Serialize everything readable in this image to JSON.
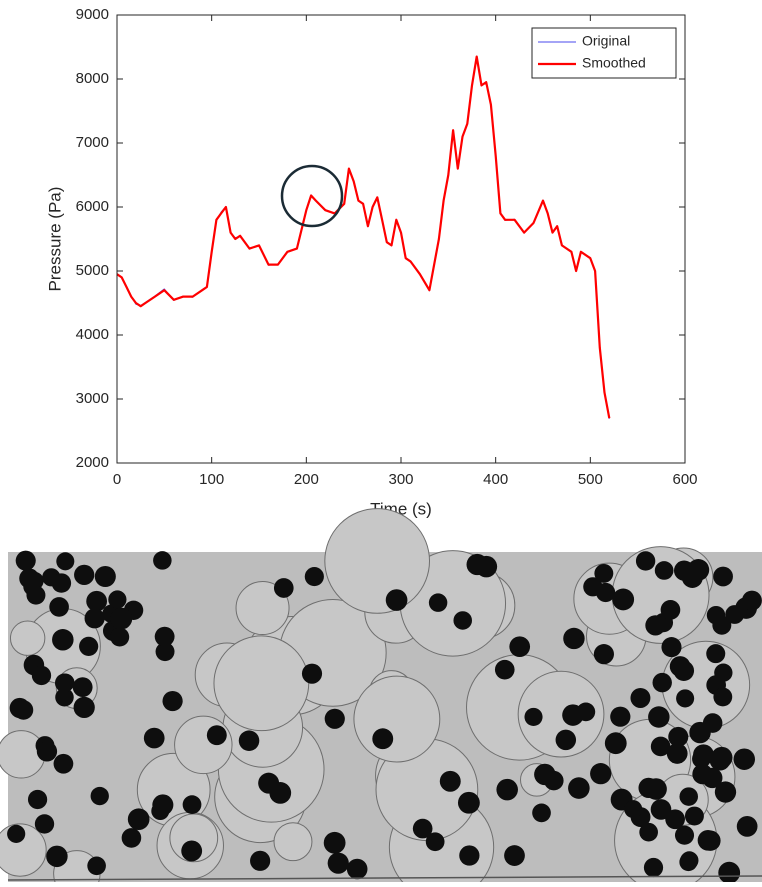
{
  "chart_data": {
    "type": "line",
    "xlabel": "Time (s)",
    "ylabel": "Pressure (Pa)",
    "x": [
      0,
      5,
      10,
      15,
      20,
      25,
      30,
      40,
      50,
      60,
      70,
      80,
      90,
      95,
      100,
      105,
      110,
      115,
      120,
      125,
      130,
      140,
      150,
      160,
      170,
      180,
      190,
      200,
      205,
      210,
      220,
      230,
      240,
      245,
      250,
      255,
      260,
      265,
      270,
      275,
      280,
      285,
      290,
      295,
      300,
      305,
      310,
      320,
      330,
      340,
      345,
      350,
      355,
      360,
      365,
      370,
      375,
      380,
      385,
      390,
      395,
      400,
      405,
      410,
      420,
      430,
      440,
      450,
      455,
      460,
      465,
      470,
      480,
      485,
      490,
      500,
      505,
      510,
      515,
      520
    ],
    "series": [
      {
        "name": "Original",
        "color": "#4a4aee",
        "width": 1,
        "values": [
          4960,
          4890,
          4760,
          4610,
          4480,
          4460,
          4510,
          4610,
          4720,
          4540,
          4610,
          4590,
          4710,
          4760,
          5310,
          5790,
          5920,
          6010,
          5590,
          5520,
          5540,
          5360,
          5390,
          5090,
          5110,
          5290,
          5360,
          5940,
          6190,
          6090,
          5960,
          5890,
          6060,
          6590,
          6410,
          6090,
          6060,
          5690,
          6010,
          6140,
          5790,
          5460,
          5390,
          5810,
          5590,
          5210,
          5140,
          4960,
          4690,
          5510,
          6090,
          6510,
          7190,
          6610,
          7110,
          7290,
          7910,
          8360,
          7890,
          7960,
          7590,
          6810,
          5910,
          5790,
          5810,
          5590,
          5760,
          6110,
          5890,
          5610,
          5690,
          5410,
          5290,
          5010,
          5290,
          5210,
          5010,
          3790,
          3110,
          2690
        ]
      },
      {
        "name": "Smoothed",
        "color": "#ff0000",
        "width": 2.2,
        "values": [
          4950,
          4900,
          4750,
          4600,
          4500,
          4450,
          4500,
          4600,
          4700,
          4550,
          4600,
          4600,
          4700,
          4750,
          5300,
          5800,
          5900,
          6000,
          5600,
          5500,
          5550,
          5350,
          5400,
          5100,
          5100,
          5300,
          5350,
          5950,
          6180,
          6100,
          5950,
          5900,
          6050,
          6600,
          6400,
          6100,
          6050,
          5700,
          6000,
          6150,
          5800,
          5450,
          5400,
          5800,
          5600,
          5200,
          5150,
          4950,
          4700,
          5500,
          6100,
          6500,
          7200,
          6600,
          7100,
          7300,
          7900,
          8350,
          7900,
          7950,
          7600,
          6800,
          5900,
          5800,
          5800,
          5600,
          5750,
          6100,
          5900,
          5600,
          5700,
          5400,
          5300,
          5000,
          5300,
          5200,
          5000,
          3800,
          3100,
          2700
        ]
      }
    ],
    "xlim": [
      0,
      600
    ],
    "xticks": [
      0,
      100,
      200,
      300,
      400,
      500,
      600
    ],
    "ylim": [
      2000,
      9000
    ],
    "yticks": [
      2000,
      3000,
      4000,
      5000,
      6000,
      7000,
      8000,
      9000
    ],
    "legend": "top-right"
  }
}
